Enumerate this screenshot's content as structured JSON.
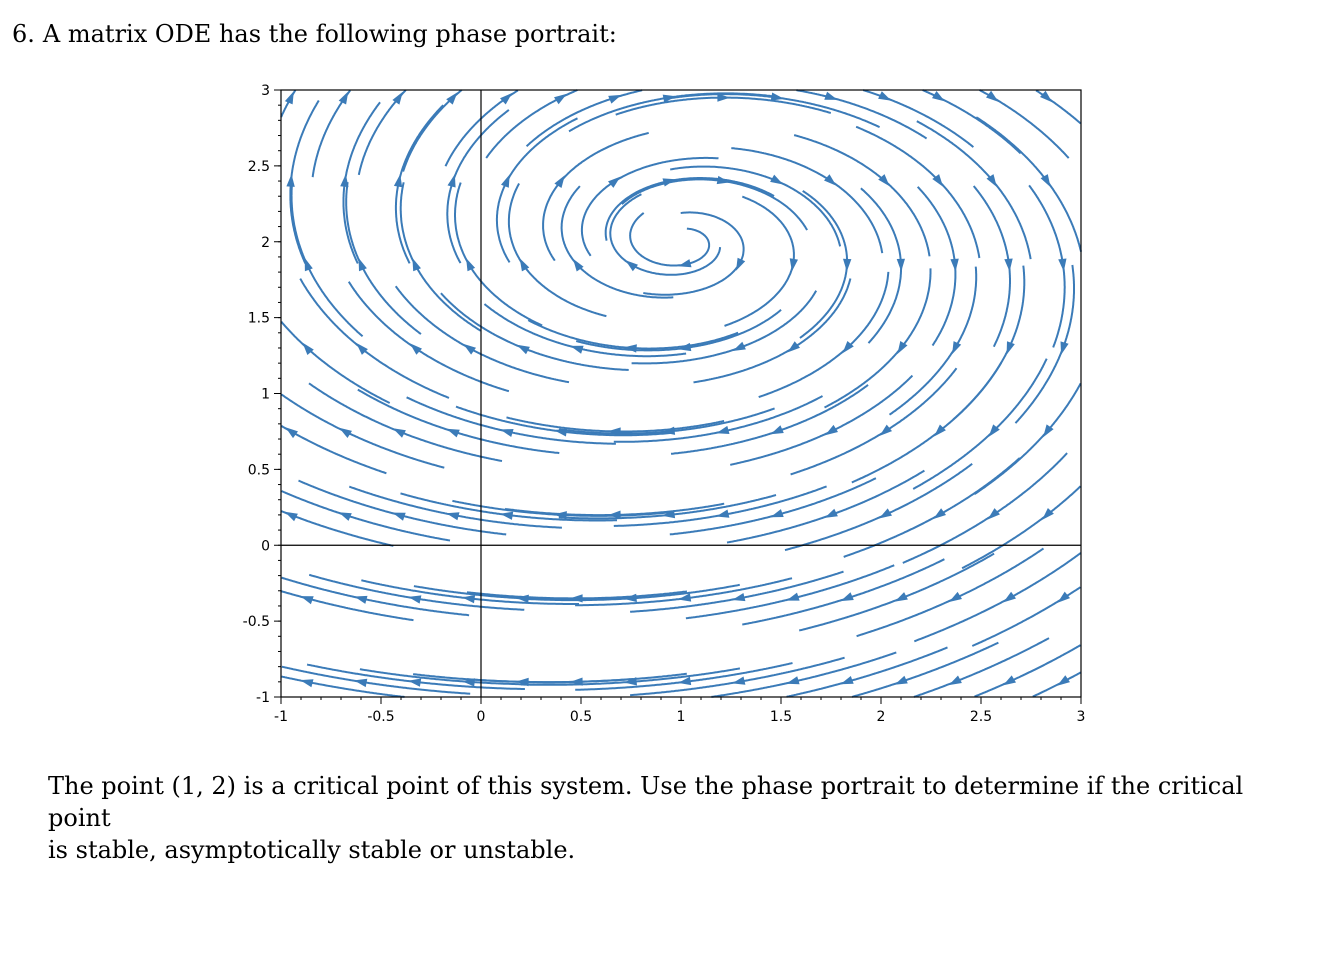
{
  "problem": {
    "number": "6.",
    "statement": "A matrix ODE has the following phase portrait:"
  },
  "figure": {
    "x_ticks": [
      "-1",
      "-0.5",
      "0",
      "0.5",
      "1",
      "1.5",
      "2",
      "2.5",
      "3"
    ],
    "y_ticks": [
      "3",
      "2.5",
      "2",
      "1.5",
      "1",
      "0.5",
      "0",
      "-0.5",
      "-1"
    ],
    "stream_color": "#3b7bb8"
  },
  "chart_data": {
    "type": "streamplot",
    "xlim": [
      -1,
      3
    ],
    "ylim": [
      -1,
      3
    ],
    "x_tick_labels": [
      "-1",
      "-0.5",
      "0",
      "0.5",
      "1",
      "1.5",
      "2",
      "2.5",
      "3"
    ],
    "y_tick_labels": [
      "-1",
      "-0.5",
      "0",
      "0.5",
      "1",
      "1.5",
      "2",
      "2.5",
      "3"
    ],
    "axes_lines_at": {
      "x": 0,
      "y": 0
    },
    "critical_point": [
      1,
      2
    ],
    "behavior": "trajectories spiral outward away from (1,2)",
    "grid": false
  },
  "question": {
    "line1": "The point (1, 2) is a critical point of this system.  Use the phase portrait to determine if the critical point",
    "line2": "is stable, asymptotically stable or unstable."
  }
}
